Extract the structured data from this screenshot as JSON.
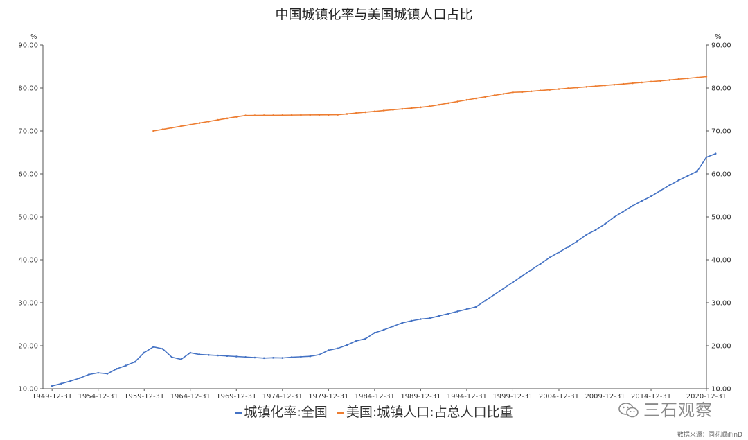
{
  "chart_data": {
    "type": "line",
    "title": "中国城镇化率与美国城镇人口占比",
    "y_unit_left": "%",
    "y_unit_right": "%",
    "ylim": [
      10,
      90
    ],
    "yticks": [
      "90.00",
      "80.00",
      "70.00",
      "60.00",
      "50.00",
      "40.00",
      "30.00",
      "20.00",
      "10.00"
    ],
    "xlim": [
      1949,
      2021
    ],
    "xtick_labels": [
      "1949-12-31",
      "1954-12-31",
      "1959-12-31",
      "1964-12-31",
      "1969-12-31",
      "1974-12-31",
      "1979-12-31",
      "1984-12-31",
      "1989-12-31",
      "1994-12-31",
      "1999-12-31",
      "2004-12-31",
      "2009-12-31",
      "2014-12-31",
      "2020-12-31"
    ],
    "grid": false,
    "legend_position": "bottom",
    "series": [
      {
        "name": "城镇化率:全国",
        "color": "#4472C4",
        "x": [
          1949,
          1950,
          1951,
          1952,
          1953,
          1954,
          1955,
          1956,
          1957,
          1958,
          1959,
          1960,
          1961,
          1962,
          1963,
          1964,
          1965,
          1966,
          1967,
          1968,
          1969,
          1970,
          1971,
          1972,
          1973,
          1974,
          1975,
          1976,
          1977,
          1978,
          1979,
          1980,
          1981,
          1982,
          1983,
          1984,
          1985,
          1986,
          1987,
          1988,
          1989,
          1990,
          1991,
          1992,
          1993,
          1994,
          1995,
          1996,
          1997,
          1998,
          1999,
          2000,
          2001,
          2002,
          2003,
          2004,
          2005,
          2006,
          2007,
          2008,
          2009,
          2010,
          2011,
          2012,
          2013,
          2014,
          2015,
          2016,
          2017,
          2018,
          2019,
          2020,
          2021
        ],
        "values": [
          10.64,
          11.18,
          11.78,
          12.46,
          13.31,
          13.69,
          13.48,
          14.62,
          15.39,
          16.25,
          18.41,
          19.75,
          19.29,
          17.33,
          16.84,
          18.37,
          17.98,
          17.86,
          17.74,
          17.62,
          17.5,
          17.38,
          17.26,
          17.13,
          17.2,
          17.16,
          17.34,
          17.44,
          17.55,
          17.92,
          18.96,
          19.39,
          20.16,
          21.13,
          21.62,
          23.01,
          23.71,
          24.52,
          25.32,
          25.81,
          26.21,
          26.41,
          26.94,
          27.46,
          27.99,
          28.51,
          29.04,
          30.48,
          31.91,
          33.35,
          34.78,
          36.22,
          37.66,
          39.09,
          40.53,
          41.76,
          42.99,
          44.34,
          45.89,
          46.99,
          48.34,
          49.95,
          51.27,
          52.57,
          53.73,
          54.77,
          56.1,
          57.35,
          58.52,
          59.58,
          60.6,
          63.89,
          64.72
        ]
      },
      {
        "name": "美国:城镇人口:占总人口比重",
        "color": "#ED7D31",
        "x": [
          1960,
          1961,
          1962,
          1963,
          1964,
          1965,
          1966,
          1967,
          1968,
          1969,
          1970,
          1971,
          1972,
          1973,
          1974,
          1975,
          1976,
          1977,
          1978,
          1979,
          1980,
          1981,
          1982,
          1983,
          1984,
          1985,
          1986,
          1987,
          1988,
          1989,
          1990,
          1991,
          1992,
          1993,
          1994,
          1995,
          1996,
          1997,
          1998,
          1999,
          2000,
          2001,
          2002,
          2003,
          2004,
          2005,
          2006,
          2007,
          2008,
          2009,
          2010,
          2011,
          2012,
          2013,
          2014,
          2015,
          2016,
          2017,
          2018,
          2019,
          2020
        ],
        "values": [
          70.0,
          70.37,
          70.74,
          71.1,
          71.47,
          71.84,
          72.2,
          72.57,
          72.93,
          73.29,
          73.6,
          73.62,
          73.64,
          73.65,
          73.67,
          73.69,
          73.71,
          73.73,
          73.74,
          73.76,
          73.77,
          73.96,
          74.16,
          74.36,
          74.55,
          74.75,
          74.94,
          75.13,
          75.32,
          75.51,
          75.74,
          76.11,
          76.48,
          76.85,
          77.22,
          77.58,
          77.94,
          78.3,
          78.65,
          78.99,
          79.06,
          79.23,
          79.41,
          79.58,
          79.76,
          79.93,
          80.1,
          80.27,
          80.44,
          80.61,
          80.77,
          80.94,
          81.12,
          81.3,
          81.48,
          81.67,
          81.86,
          82.06,
          82.26,
          82.46,
          82.66
        ]
      }
    ]
  },
  "watermark": {
    "text": "三石观察",
    "icon": "wechat-icon"
  },
  "source": "数据来源：同花顺iFinD"
}
